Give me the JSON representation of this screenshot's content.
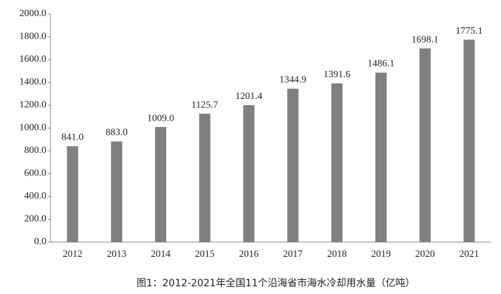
{
  "chart_data": {
    "type": "bar",
    "title": "图1：2012-2021年全国11个沿海省市海水冷却用水量（亿吨）",
    "categories": [
      "2012",
      "2013",
      "2014",
      "2015",
      "2016",
      "2017",
      "2018",
      "2019",
      "2020",
      "2021"
    ],
    "values": [
      841.0,
      883.0,
      1009.0,
      1125.7,
      1201.4,
      1344.9,
      1391.6,
      1486.1,
      1698.1,
      1775.1
    ],
    "value_labels": [
      "841.0",
      "883.0",
      "1009.0",
      "1125.7",
      "1201.4",
      "1344.9",
      "1391.6",
      "1486.1",
      "1698.1",
      "1775.1"
    ],
    "color": "#808080",
    "ylim": [
      0,
      2000
    ],
    "yticks": [
      {
        "value": 0,
        "label": "0.0"
      },
      {
        "value": 200,
        "label": "200.0"
      },
      {
        "value": 400,
        "label": "400.0"
      },
      {
        "value": 600,
        "label": "600.0"
      },
      {
        "value": 800,
        "label": "800.0"
      },
      {
        "value": 1000,
        "label": "1000.0"
      },
      {
        "value": 1200,
        "label": "1200.0"
      },
      {
        "value": 1400,
        "label": "1400.0"
      },
      {
        "value": 1600,
        "label": "1600.0"
      },
      {
        "value": 1800,
        "label": "1800.0"
      },
      {
        "value": 2000,
        "label": "2000.0"
      }
    ],
    "grid": false
  }
}
